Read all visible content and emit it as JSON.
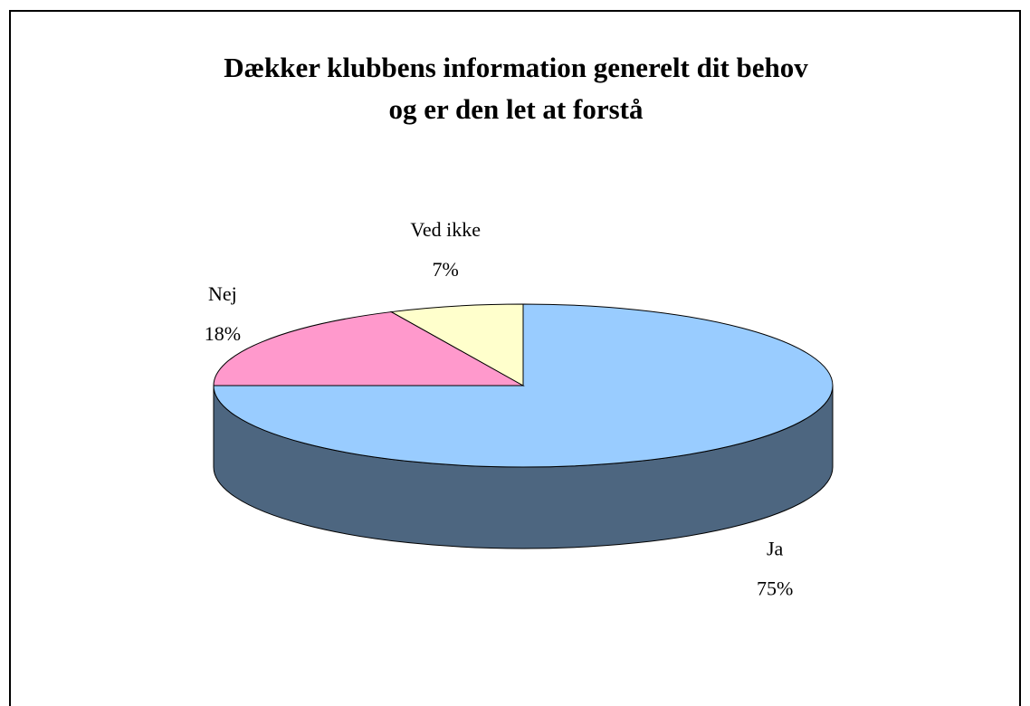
{
  "chart_data": {
    "type": "pie3d",
    "title": [
      "Dækker klubbens information generelt dit behov",
      "og er den let at forstå"
    ],
    "categories": [
      "Ja",
      "Nej",
      "Ved ikke"
    ],
    "values": [
      75,
      18,
      7
    ],
    "value_labels": [
      "75%",
      "18%",
      "7%"
    ],
    "colors": [
      "#99ccff",
      "#ff99cc",
      "#ffffcc"
    ],
    "start_angle": 0,
    "direction": "clockwise"
  }
}
